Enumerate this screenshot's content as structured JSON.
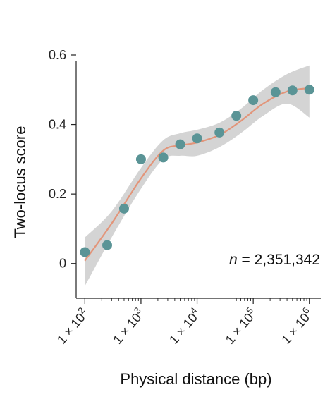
{
  "chart_data": {
    "type": "scatter",
    "xlabel": "Physical distance (bp)",
    "ylabel": "Two-locus score",
    "x_scale": "log",
    "xlim": [
      70,
      1600000
    ],
    "ylim": [
      -0.1,
      0.6
    ],
    "y_ticks": [
      0,
      0.2,
      0.4,
      0.6
    ],
    "y_tick_labels": [
      "0",
      "0.2",
      "0.4",
      "0.6"
    ],
    "x_ticks": [
      100,
      1000,
      10000,
      100000,
      1000000
    ],
    "x_tick_labels": [
      {
        "base": "1 × 10",
        "exp": "2"
      },
      {
        "base": "1 × 10",
        "exp": "3"
      },
      {
        "base": "1 × 10",
        "exp": "4"
      },
      {
        "base": "1 × 10",
        "exp": "5"
      },
      {
        "base": "1 × 10",
        "exp": "6"
      }
    ],
    "grid": false,
    "annotation": {
      "italic": "n",
      "text": " = 2,351,342"
    },
    "colors": {
      "points": "#5a9496",
      "fit": "#e2957a",
      "band": "#cccccc",
      "axis": "#222222"
    },
    "points": [
      {
        "x": 100,
        "y": 0.033
      },
      {
        "x": 250,
        "y": 0.053
      },
      {
        "x": 500,
        "y": 0.158
      },
      {
        "x": 1000,
        "y": 0.3
      },
      {
        "x": 2500,
        "y": 0.305
      },
      {
        "x": 5000,
        "y": 0.343
      },
      {
        "x": 10000,
        "y": 0.36
      },
      {
        "x": 25000,
        "y": 0.377
      },
      {
        "x": 50000,
        "y": 0.425
      },
      {
        "x": 100000,
        "y": 0.47
      },
      {
        "x": 250000,
        "y": 0.493
      },
      {
        "x": 500000,
        "y": 0.498
      },
      {
        "x": 1000000,
        "y": 0.5
      }
    ],
    "fit": [
      {
        "x": 100,
        "y": 0.008
      },
      {
        "x": 300,
        "y": 0.115
      },
      {
        "x": 1000,
        "y": 0.245
      },
      {
        "x": 2500,
        "y": 0.325
      },
      {
        "x": 5000,
        "y": 0.34
      },
      {
        "x": 10000,
        "y": 0.348
      },
      {
        "x": 25000,
        "y": 0.37
      },
      {
        "x": 60000,
        "y": 0.41
      },
      {
        "x": 150000,
        "y": 0.46
      },
      {
        "x": 400000,
        "y": 0.495
      },
      {
        "x": 1000000,
        "y": 0.505
      }
    ],
    "band": [
      {
        "x": 100,
        "lo": -0.065,
        "hi": 0.075
      },
      {
        "x": 300,
        "lo": 0.075,
        "hi": 0.15
      },
      {
        "x": 1000,
        "lo": 0.215,
        "hi": 0.275
      },
      {
        "x": 2500,
        "lo": 0.3,
        "hi": 0.355
      },
      {
        "x": 5000,
        "lo": 0.31,
        "hi": 0.375
      },
      {
        "x": 10000,
        "lo": 0.31,
        "hi": 0.385
      },
      {
        "x": 25000,
        "lo": 0.335,
        "hi": 0.405
      },
      {
        "x": 60000,
        "lo": 0.375,
        "hi": 0.445
      },
      {
        "x": 150000,
        "lo": 0.425,
        "hi": 0.5
      },
      {
        "x": 400000,
        "lo": 0.46,
        "hi": 0.545
      },
      {
        "x": 1000000,
        "lo": 0.42,
        "hi": 0.57
      }
    ]
  }
}
